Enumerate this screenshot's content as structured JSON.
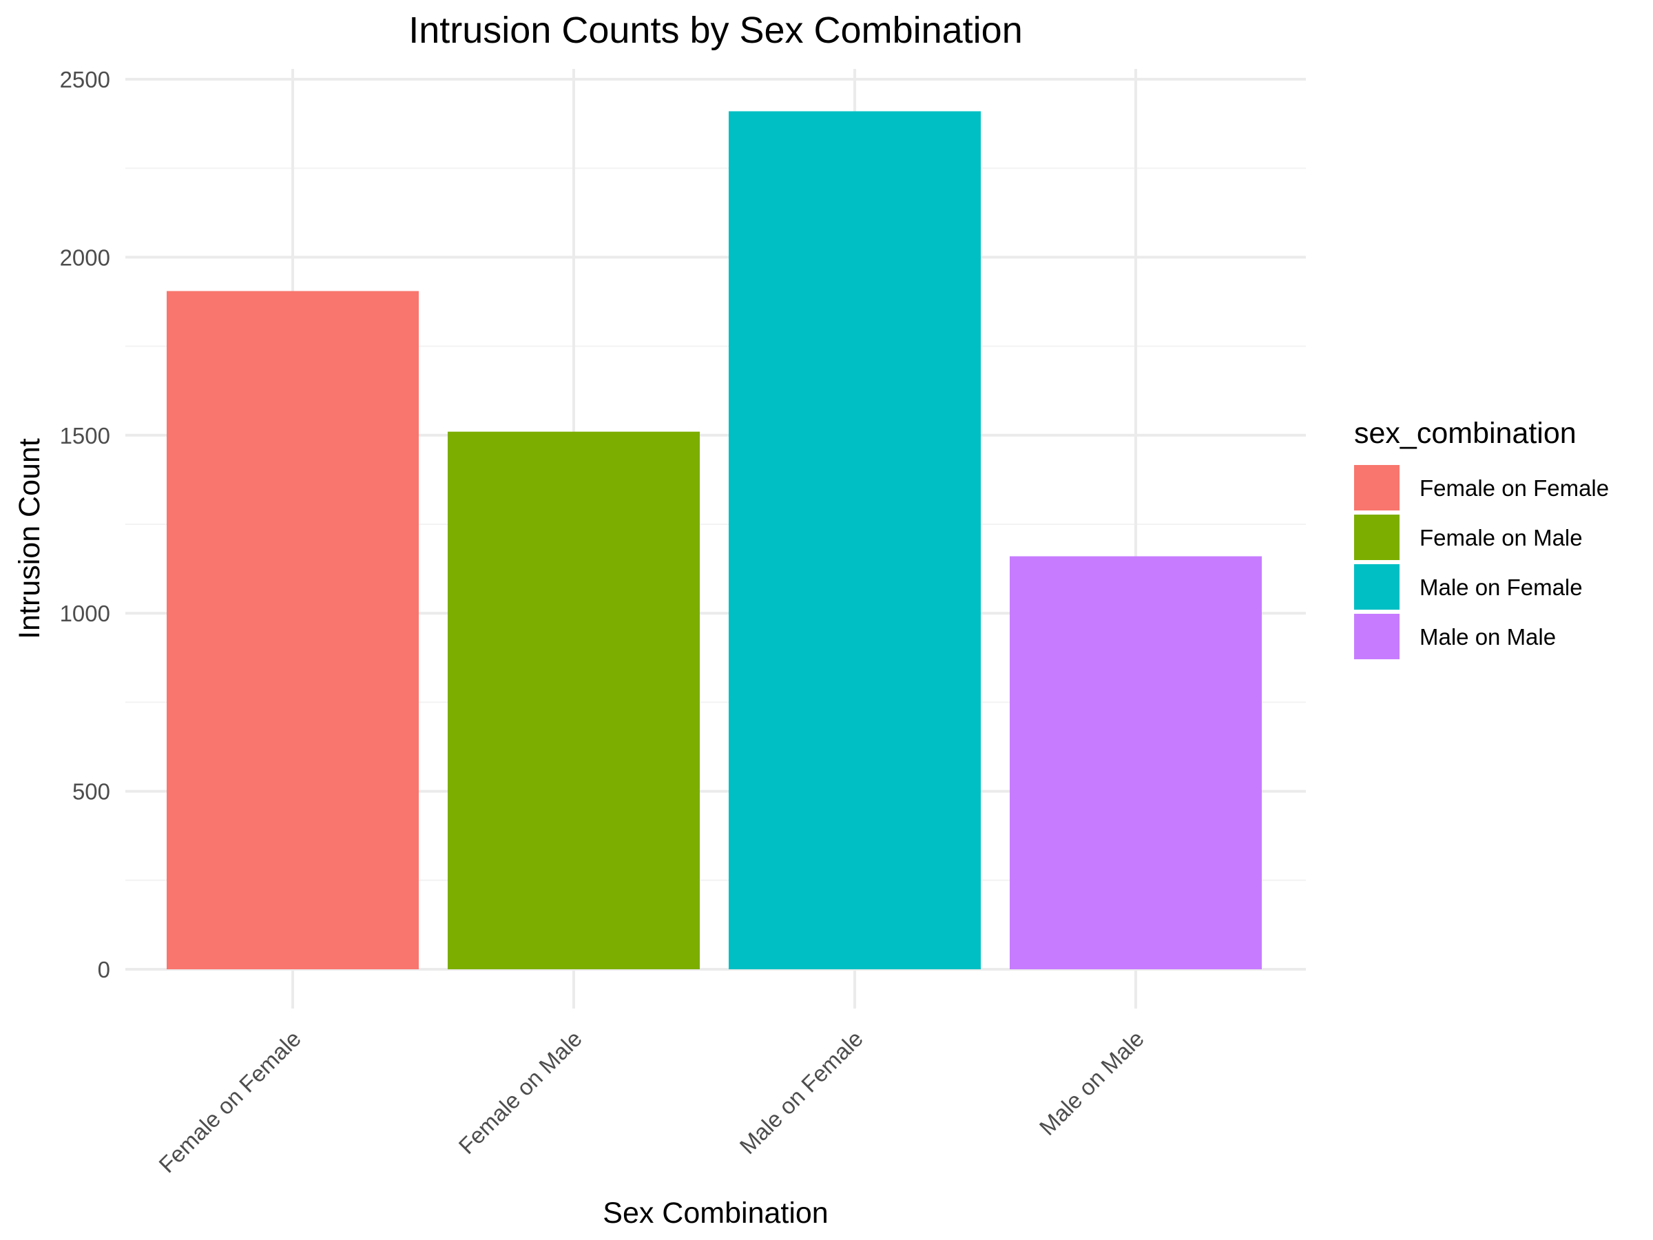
{
  "chart_data": {
    "type": "bar",
    "title": "Intrusion Counts by Sex Combination",
    "xlabel": "Sex Combination",
    "ylabel": "Intrusion Count",
    "categories": [
      "Female on Female",
      "Female on Male",
      "Male on Female",
      "Male on Male"
    ],
    "values": [
      1905,
      1510,
      2410,
      1160
    ],
    "colors": [
      "#F8766D",
      "#7CAE00",
      "#00BFC4",
      "#C77CFF"
    ],
    "ylim": [
      0,
      2500
    ],
    "yticks": [
      "0",
      "500",
      "1000",
      "1500",
      "2000",
      "2500"
    ],
    "grid": true,
    "legend": {
      "title": "sex_combination",
      "position": "right",
      "items": [
        "Female on Female",
        "Female on Male",
        "Male on Female",
        "Male on Male"
      ]
    }
  }
}
